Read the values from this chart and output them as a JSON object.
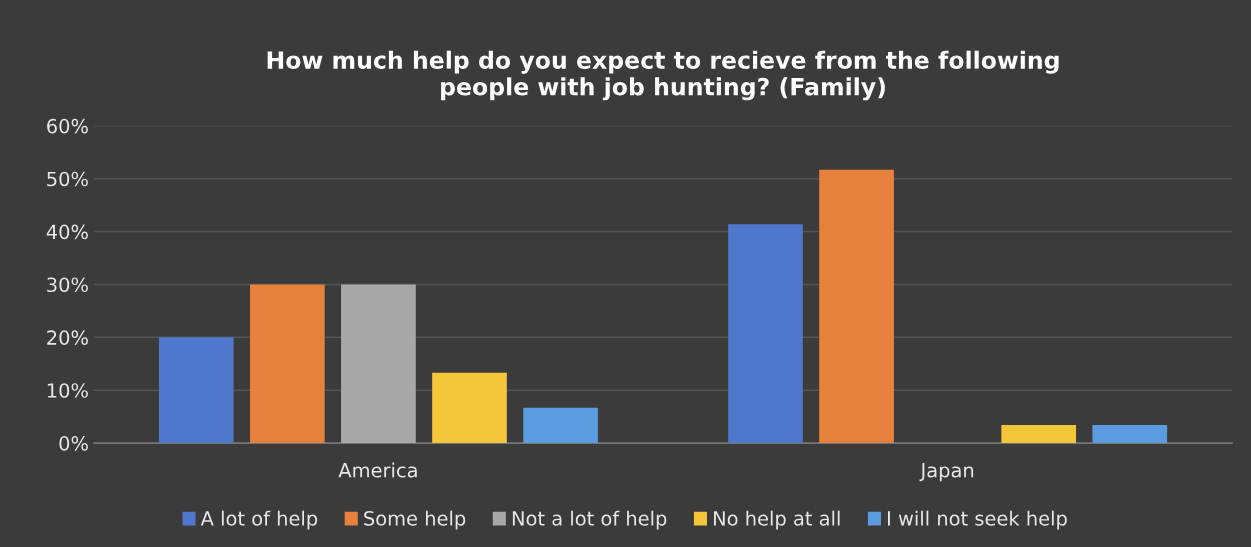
{
  "chart_data": {
    "type": "bar",
    "title": "How much help do you expect to recieve from the following\npeople with job hunting? (Family)",
    "categories": [
      "America",
      "Japan"
    ],
    "series": [
      {
        "name": "A lot of help",
        "color": "#4f78cc",
        "values": [
          20,
          41.4
        ]
      },
      {
        "name": "Some help",
        "color": "#e8803e",
        "values": [
          30,
          51.7
        ]
      },
      {
        "name": "Not a lot of help",
        "color": "#a8a8a8",
        "values": [
          30,
          0
        ]
      },
      {
        "name": "No help at all",
        "color": "#f5c53a",
        "values": [
          13.3,
          3.4
        ]
      },
      {
        "name": "I will not seek help",
        "color": "#5b9be0",
        "values": [
          6.7,
          3.4
        ]
      }
    ],
    "ylim": [
      0,
      60
    ],
    "yticks": [
      {
        "value": 0,
        "label": "0%"
      },
      {
        "value": 10,
        "label": "10%"
      },
      {
        "value": 20,
        "label": "20%"
      },
      {
        "value": 30,
        "label": "30%"
      },
      {
        "value": 40,
        "label": "40%"
      },
      {
        "value": 50,
        "label": "50%"
      },
      {
        "value": 60,
        "label": "60%"
      }
    ],
    "grid": "y",
    "legend": "bottom"
  }
}
